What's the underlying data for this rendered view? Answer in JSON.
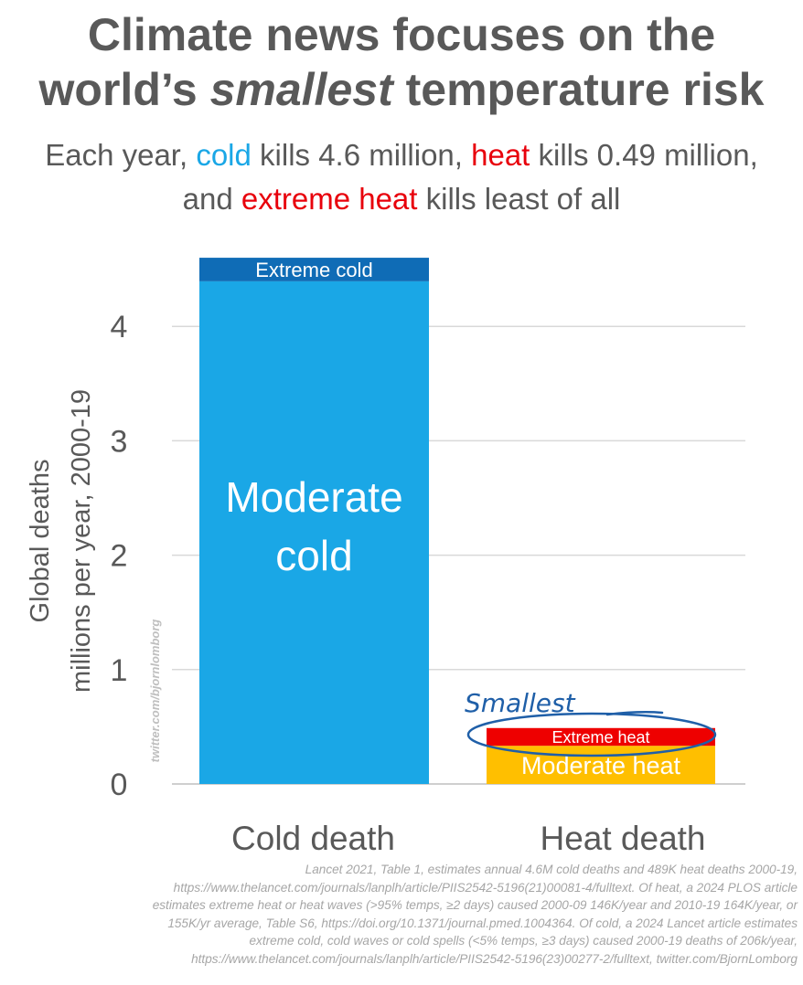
{
  "title": {
    "line1": "Climate news focuses on the",
    "line2_pre": "world’s ",
    "line2_em": "smallest",
    "line2_post": " temperature risk"
  },
  "subtitle": {
    "p1": "Each year, ",
    "cold": "cold",
    "p2": " kills 4.6 million, ",
    "heat": "heat",
    "p3": " kills 0.49 million, and ",
    "extreme_heat": "extreme heat",
    "p4": " kills least of all"
  },
  "chart_data": {
    "type": "bar",
    "stacked": true,
    "categories": [
      "Cold death",
      "Heat death"
    ],
    "series": [
      {
        "name": "Moderate cold",
        "values": [
          4.394,
          0
        ],
        "color": "#1aa7e6"
      },
      {
        "name": "Extreme cold",
        "values": [
          0.206,
          0
        ],
        "color": "#0f6cb6"
      },
      {
        "name": "Moderate heat",
        "values": [
          0,
          0.334
        ],
        "color": "#ffbf00"
      },
      {
        "name": "Extreme heat",
        "values": [
          0,
          0.155
        ],
        "color": "#ee0000"
      }
    ],
    "ylabel_line1": "Global deaths",
    "ylabel_line2": "millions per year, 2000-19",
    "ylim": [
      0,
      4.6
    ],
    "yticks": [
      0,
      1,
      2,
      3,
      4
    ],
    "grid": true,
    "annotation": "Smallest",
    "watermark": "twitter.com/bjornlomborg"
  },
  "source": "Lancet 2021, Table 1, estimates annual 4.6M cold deaths and 489K heat deaths 2000-19, https://www.thelancet.com/journals/lanplh/article/PIIS2542-5196(21)00081-4/fulltext. Of heat, a 2024 PLOS article estimates extreme heat or heat waves (>95% temps, ≥2 days) caused 2000-09 146K/year and 2010-19 164K/year, or 155K/yr average, Table S6, https://doi.org/10.1371/journal.pmed.1004364. Of cold, a 2024 Lancet article estimates extreme cold, cold waves or cold spells (<5% temps, ≥3 days) caused 2000-19 deaths of 206k/year, https://www.thelancet.com/journals/lanplh/article/PIIS2542-5196(23)00277-2/fulltext, twitter.com/BjornLomborg"
}
